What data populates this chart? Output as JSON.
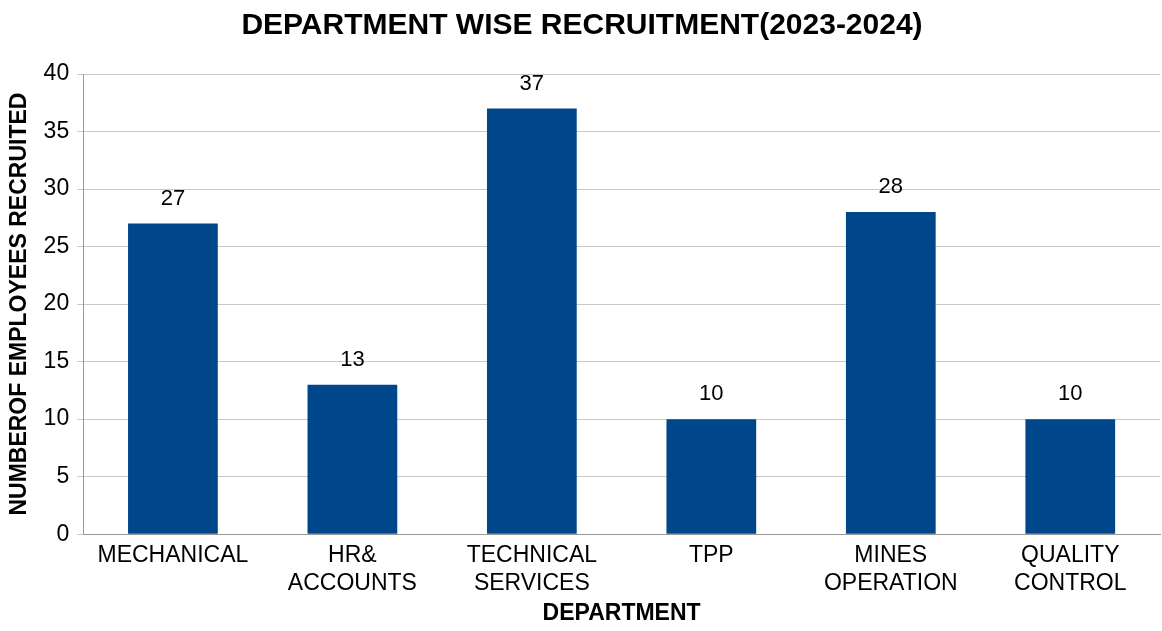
{
  "chart_data": {
    "type": "bar",
    "title": "DEPARTMENT WISE RECRUITMENT(2023-2024)",
    "xlabel": "DEPARTMENT",
    "ylabel": "NUMBEROF EMPLOYEES RECRUITED",
    "categories": [
      "MECHANICAL",
      "HR& ACCOUNTS",
      "TECHNICAL SERVICES",
      "TPP",
      "MINES OPERATION",
      "QUALITY CONTROL"
    ],
    "values": [
      27,
      13,
      37,
      10,
      28,
      10
    ],
    "color": "#00468b",
    "ylim": [
      0,
      40
    ],
    "yticks": [
      0,
      5,
      10,
      15,
      20,
      25,
      30,
      35,
      40
    ],
    "grid": "y",
    "data_labels": true
  }
}
